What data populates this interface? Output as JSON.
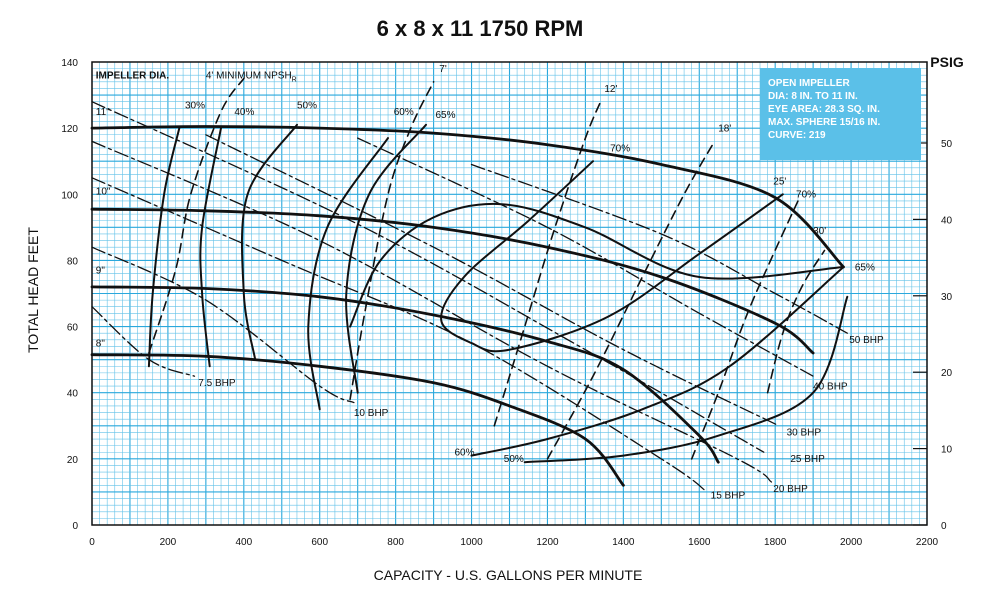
{
  "chart_data": {
    "type": "line",
    "title": "6 x 8 x 11   1750 RPM",
    "xlabel": "CAPACITY - U.S. GALLONS PER MINUTE",
    "ylabel": "TOTAL HEAD FEET",
    "y2label": "PSIG",
    "xlim": [
      0,
      2200
    ],
    "ylim": [
      0,
      140
    ],
    "y2lim": [
      0,
      60.6
    ],
    "x_ticks": [
      "0",
      "200",
      "400",
      "600",
      "800",
      "1000",
      "1200",
      "1400",
      "1600",
      "1800",
      "2000",
      "2200"
    ],
    "y_ticks": [
      "0",
      "20",
      "40",
      "60",
      "80",
      "100",
      "120",
      "140"
    ],
    "y2_ticks": [
      "0",
      "10",
      "20",
      "30",
      "40",
      "50"
    ],
    "grid": true,
    "info_box": {
      "lines": [
        "OPEN IMPELLER",
        "DIA: 8 IN. TO 11 IN.",
        "EYE AREA: 28.3 SQ. IN.",
        "MAX. SPHERE 15/16 IN.",
        "CURVE: 219"
      ],
      "background": "#5bc0e8"
    },
    "impeller_label": "IMPELLER DIA.",
    "npsh_label": "4' MINIMUM NPSH",
    "npsh_subscript": "R",
    "colors": {
      "grid_major": "#2aa8dc",
      "grid_minor": "#63c2e8",
      "curves": "#111111",
      "box": "#5bc0e8"
    },
    "series": [
      {
        "name": "11\"",
        "kind": "head",
        "points": [
          [
            0,
            120
          ],
          [
            300,
            120.5
          ],
          [
            600,
            120
          ],
          [
            900,
            118.5
          ],
          [
            1200,
            115
          ],
          [
            1500,
            109
          ],
          [
            1800,
            99
          ],
          [
            1980,
            78
          ]
        ]
      },
      {
        "name": "10\"",
        "kind": "head",
        "points": [
          [
            0,
            95.5
          ],
          [
            300,
            95
          ],
          [
            600,
            93.5
          ],
          [
            900,
            90
          ],
          [
            1200,
            84
          ],
          [
            1500,
            75
          ],
          [
            1800,
            61
          ],
          [
            1900,
            52
          ]
        ]
      },
      {
        "name": "9\"",
        "kind": "head",
        "points": [
          [
            0,
            72
          ],
          [
            300,
            71.5
          ],
          [
            600,
            69
          ],
          [
            900,
            63.5
          ],
          [
            1200,
            55.5
          ],
          [
            1400,
            47
          ],
          [
            1600,
            27
          ],
          [
            1650,
            19
          ]
        ]
      },
      {
        "name": "8\"",
        "kind": "head",
        "points": [
          [
            0,
            51.5
          ],
          [
            300,
            51
          ],
          [
            600,
            48
          ],
          [
            900,
            43
          ],
          [
            1100,
            36
          ],
          [
            1300,
            26
          ],
          [
            1400,
            12
          ]
        ]
      },
      {
        "name": "30%",
        "kind": "efficiency",
        "points": [
          [
            150,
            48
          ],
          [
            160,
            70
          ],
          [
            190,
            100
          ],
          [
            230,
            120
          ]
        ]
      },
      {
        "name": "40%",
        "kind": "efficiency",
        "points": [
          [
            310,
            48
          ],
          [
            290,
            70
          ],
          [
            290,
            90
          ],
          [
            340,
            120
          ]
        ]
      },
      {
        "name": "50%",
        "kind": "efficiency",
        "points": [
          [
            430,
            50
          ],
          [
            400,
            70
          ],
          [
            410,
            100
          ],
          [
            540,
            121
          ]
        ]
      },
      {
        "name": "60%",
        "kind": "efficiency",
        "points": [
          [
            600,
            35
          ],
          [
            570,
            60
          ],
          [
            620,
            90
          ],
          [
            780,
            117
          ]
        ]
      },
      {
        "name": "65%",
        "kind": "efficiency",
        "points": [
          [
            700,
            40
          ],
          [
            670,
            70
          ],
          [
            730,
            100
          ],
          [
            880,
            121
          ]
        ]
      },
      {
        "name": "70%",
        "kind": "efficiency",
        "points": [
          [
            1320,
            110
          ],
          [
            1150,
            92
          ],
          [
            980,
            75
          ],
          [
            920,
            62
          ],
          [
            1000,
            55
          ],
          [
            1100,
            53
          ],
          [
            1360,
            63
          ],
          [
            1600,
            82
          ],
          [
            1820,
            100
          ]
        ]
      },
      {
        "name": "65%",
        "kind": "efficiency",
        "points": [
          [
            680,
            60
          ],
          [
            760,
            80
          ],
          [
            900,
            93
          ],
          [
            1080,
            97
          ],
          [
            1300,
            90
          ],
          [
            1600,
            75
          ],
          [
            1980,
            78
          ]
        ]
      },
      {
        "name": "60%",
        "kind": "efficiency",
        "points": [
          [
            1000,
            21
          ],
          [
            1200,
            26
          ],
          [
            1450,
            35
          ],
          [
            1680,
            48
          ],
          [
            1980,
            78
          ]
        ]
      },
      {
        "name": "50%",
        "kind": "efficiency",
        "points": [
          [
            1140,
            19
          ],
          [
            1400,
            21
          ],
          [
            1650,
            27
          ],
          [
            1900,
            40
          ],
          [
            1990,
            69
          ]
        ]
      },
      {
        "name": "7.5 BHP",
        "kind": "bhp",
        "points": [
          [
            0,
            66
          ],
          [
            150,
            50
          ],
          [
            270,
            45
          ]
        ]
      },
      {
        "name": "10 BHP",
        "kind": "bhp",
        "points": [
          [
            0,
            84
          ],
          [
            300,
            68
          ],
          [
            600,
            42
          ],
          [
            690,
            37
          ]
        ]
      },
      {
        "name": "15 BHP",
        "kind": "bhp",
        "points": [
          [
            0,
            105
          ],
          [
            500,
            80
          ],
          [
            1000,
            55
          ],
          [
            1500,
            20
          ],
          [
            1620,
            10
          ]
        ]
      },
      {
        "name": "20 BHP",
        "kind": "bhp",
        "points": [
          [
            0,
            116
          ],
          [
            600,
            86
          ],
          [
            1200,
            48
          ],
          [
            1700,
            20
          ],
          [
            1790,
            13
          ]
        ]
      },
      {
        "name": "25 BHP",
        "kind": "bhp",
        "points": [
          [
            0,
            128
          ],
          [
            700,
            91
          ],
          [
            1300,
            53
          ],
          [
            1770,
            22
          ]
        ]
      },
      {
        "name": "30 BHP",
        "kind": "bhp",
        "points": [
          [
            300,
            118
          ],
          [
            900,
            84
          ],
          [
            1400,
            53
          ],
          [
            1810,
            30
          ]
        ]
      },
      {
        "name": "40 BHP",
        "kind": "bhp",
        "points": [
          [
            700,
            117
          ],
          [
            1200,
            90
          ],
          [
            1600,
            64
          ],
          [
            1900,
            45
          ]
        ]
      },
      {
        "name": "50 BHP",
        "kind": "bhp",
        "points": [
          [
            1000,
            109
          ],
          [
            1500,
            88
          ],
          [
            1800,
            70
          ],
          [
            1990,
            58
          ]
        ]
      },
      {
        "name": "4' MINIMUM NPSHR",
        "kind": "npsh",
        "points": [
          [
            150,
            52
          ],
          [
            220,
            77
          ],
          [
            260,
            100
          ],
          [
            340,
            125
          ],
          [
            400,
            135
          ]
        ]
      },
      {
        "name": "7'",
        "kind": "npsh",
        "points": [
          [
            680,
            38
          ],
          [
            720,
            65
          ],
          [
            780,
            100
          ],
          [
            840,
            120
          ],
          [
            900,
            134
          ]
        ]
      },
      {
        "name": "12'",
        "kind": "npsh",
        "points": [
          [
            1060,
            30
          ],
          [
            1140,
            60
          ],
          [
            1220,
            90
          ],
          [
            1300,
            117
          ],
          [
            1340,
            128
          ]
        ]
      },
      {
        "name": "18'",
        "kind": "npsh",
        "points": [
          [
            1200,
            20
          ],
          [
            1320,
            45
          ],
          [
            1450,
            75
          ],
          [
            1560,
            100
          ],
          [
            1640,
            116
          ]
        ]
      },
      {
        "name": "25'",
        "kind": "npsh",
        "points": [
          [
            1580,
            20
          ],
          [
            1650,
            40
          ],
          [
            1720,
            62
          ],
          [
            1780,
            78
          ],
          [
            1860,
            98
          ]
        ]
      },
      {
        "name": "30'",
        "kind": "npsh",
        "points": [
          [
            1780,
            40
          ],
          [
            1820,
            58
          ],
          [
            1870,
            72
          ],
          [
            1930,
            83
          ]
        ]
      }
    ],
    "labels": [
      {
        "text": "11\"",
        "x": 10,
        "y": 124
      },
      {
        "text": "10\"",
        "x": 10,
        "y": 100
      },
      {
        "text": "9\"",
        "x": 10,
        "y": 76
      },
      {
        "text": "8\"",
        "x": 10,
        "y": 54
      },
      {
        "text": "30%",
        "x": 245,
        "y": 126
      },
      {
        "text": "40%",
        "x": 375,
        "y": 124
      },
      {
        "text": "50%",
        "x": 540,
        "y": 126
      },
      {
        "text": "60%",
        "x": 795,
        "y": 124
      },
      {
        "text": "65%",
        "x": 905,
        "y": 123
      },
      {
        "text": "70%",
        "x": 1365,
        "y": 113
      },
      {
        "text": "70%",
        "x": 1855,
        "y": 99
      },
      {
        "text": "65%",
        "x": 2010,
        "y": 77
      },
      {
        "text": "60%",
        "x": 955,
        "y": 21
      },
      {
        "text": "50%",
        "x": 1085,
        "y": 19
      },
      {
        "text": "7'",
        "x": 915,
        "y": 137
      },
      {
        "text": "12'",
        "x": 1350,
        "y": 131
      },
      {
        "text": "18'",
        "x": 1650,
        "y": 119
      },
      {
        "text": "25'",
        "x": 1795,
        "y": 103
      },
      {
        "text": "30'",
        "x": 1900,
        "y": 88
      },
      {
        "text": "7.5 BHP",
        "x": 280,
        "y": 42
      },
      {
        "text": "10 BHP",
        "x": 690,
        "y": 33
      },
      {
        "text": "15 BHP",
        "x": 1630,
        "y": 8
      },
      {
        "text": "20 BHP",
        "x": 1795,
        "y": 10
      },
      {
        "text": "25 BHP",
        "x": 1840,
        "y": 19
      },
      {
        "text": "30 BHP",
        "x": 1830,
        "y": 27
      },
      {
        "text": "40 BHP",
        "x": 1900,
        "y": 41
      },
      {
        "text": "50 BHP",
        "x": 1995,
        "y": 55
      }
    ]
  }
}
